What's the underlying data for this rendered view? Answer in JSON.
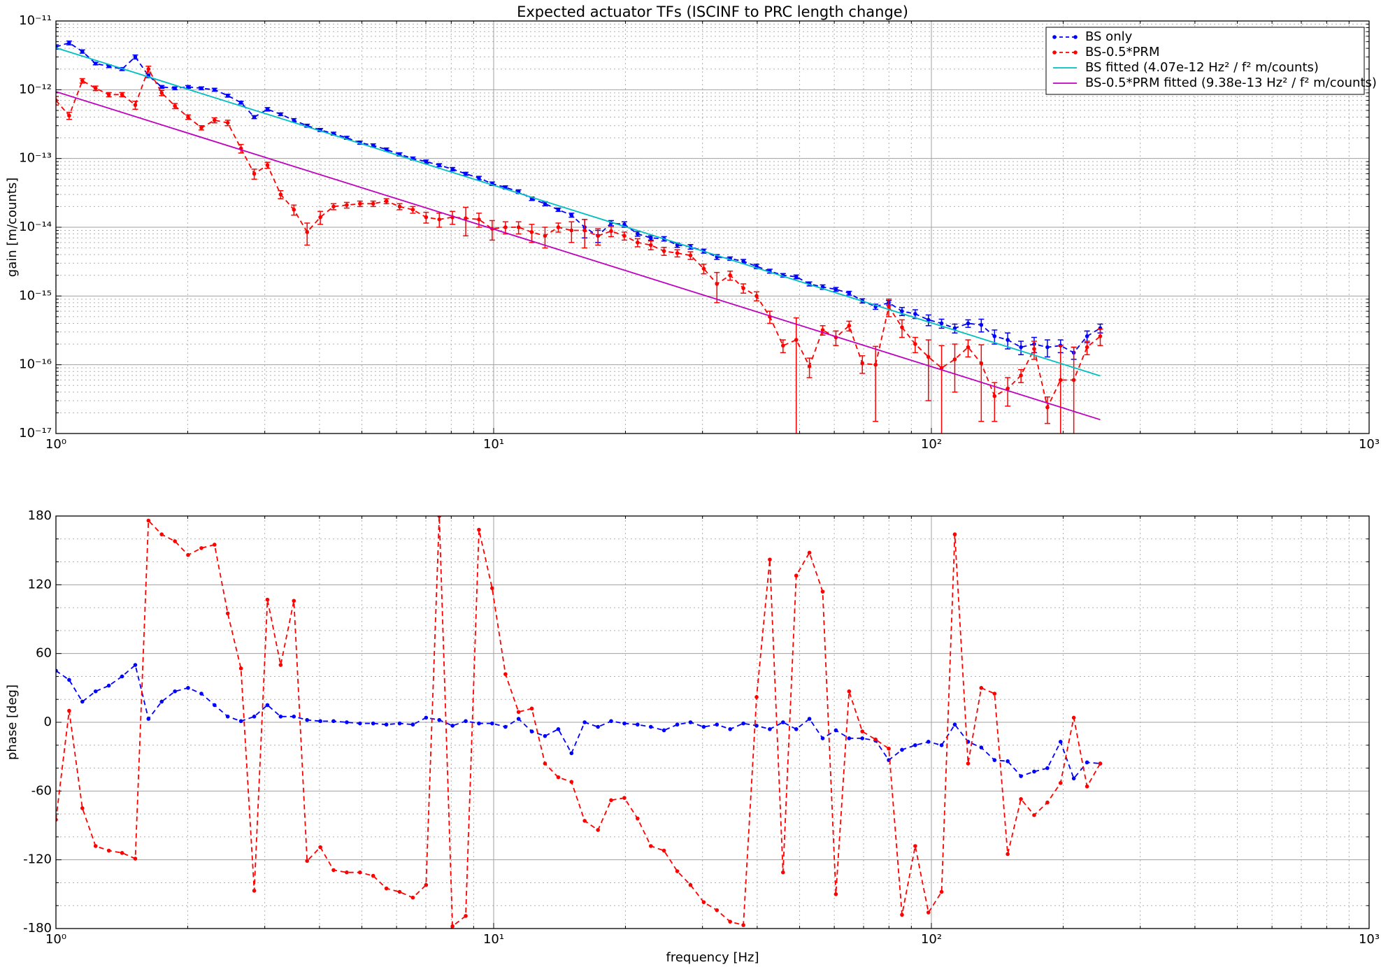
{
  "chart_data": [
    {
      "type": "line",
      "title": "Expected actuator TFs (ISCINF to PRC length change)",
      "ylabel": "gain [m/counts]",
      "xlog": true,
      "ylog": true,
      "grid": true,
      "legend": "upper right",
      "xlim": [
        1,
        1000
      ],
      "xticks": [
        {
          "value": 1,
          "label": "10⁰"
        },
        {
          "value": 10,
          "label": "10¹"
        },
        {
          "value": 100,
          "label": "10²"
        },
        {
          "value": 1000,
          "label": "10³"
        }
      ],
      "ylim": [
        1e-17,
        1e-11
      ],
      "yticks": [
        {
          "value": 1e-17,
          "label": "10⁻¹⁷"
        },
        {
          "value": 1e-16,
          "label": "10⁻¹⁶"
        },
        {
          "value": 1e-15,
          "label": "10⁻¹⁵"
        },
        {
          "value": 1e-14,
          "label": "10⁻¹⁴"
        },
        {
          "value": 1e-13,
          "label": "10⁻¹³"
        },
        {
          "value": 1e-12,
          "label": "10⁻¹²"
        },
        {
          "value": 1e-11,
          "label": "10⁻¹¹"
        }
      ],
      "x": [
        1.0,
        1.072,
        1.149,
        1.232,
        1.321,
        1.416,
        1.518,
        1.627,
        1.744,
        1.87,
        2.004,
        2.149,
        2.303,
        2.469,
        2.647,
        2.838,
        3.042,
        3.261,
        3.496,
        3.748,
        4.018,
        4.307,
        4.617,
        4.95,
        5.306,
        5.688,
        6.098,
        6.537,
        7.008,
        7.512,
        8.053,
        8.633,
        9.255,
        9.921,
        10.64,
        11.4,
        12.22,
        13.1,
        14.05,
        15.06,
        16.14,
        17.31,
        18.55,
        19.89,
        21.32,
        22.86,
        24.5,
        26.27,
        28.16,
        30.19,
        32.36,
        34.69,
        37.19,
        39.87,
        42.74,
        45.82,
        49.12,
        52.65,
        56.45,
        60.51,
        64.87,
        69.54,
        74.55,
        79.92,
        85.67,
        91.84,
        98.45,
        105.5,
        113.1,
        121.3,
        130.0,
        139.4,
        149.4,
        160.2,
        171.7,
        184.1,
        197.3,
        211.5,
        226.8,
        243.1
      ],
      "series": [
        {
          "name": "BS only",
          "color": "#0000ff",
          "linestyle": "dashed",
          "marker": true,
          "values": [
            4.2e-12,
            4.8e-12,
            3.6e-12,
            2.4e-12,
            2.2e-12,
            2e-12,
            3e-12,
            1.6e-12,
            1.1e-12,
            1.05e-12,
            1.1e-12,
            1.05e-12,
            1e-12,
            8.2e-13,
            6.5e-13,
            4e-13,
            5.2e-13,
            4.4e-13,
            3.6e-13,
            3e-13,
            2.6e-13,
            2.3e-13,
            2e-13,
            1.7e-13,
            1.55e-13,
            1.35e-13,
            1.15e-13,
            1e-13,
            9e-14,
            8e-14,
            7e-14,
            6e-14,
            5.2e-14,
            4.3e-14,
            3.8e-14,
            3.3e-14,
            2.6e-14,
            2.2e-14,
            1.8e-14,
            1.5e-14,
            1e-14,
            7.5e-15,
            1.15e-14,
            1.1e-14,
            8e-15,
            7e-15,
            6.8e-15,
            5.5e-15,
            5.2e-15,
            4.5e-15,
            3.7e-15,
            3.5e-15,
            3.2e-15,
            2.7e-15,
            2.3e-15,
            2e-15,
            1.9e-15,
            1.5e-15,
            1.35e-15,
            1.25e-15,
            1.1e-15,
            8.5e-16,
            7e-16,
            8e-16,
            6e-16,
            5.5e-16,
            4.5e-16,
            4e-16,
            3.4e-16,
            4e-16,
            3.8e-16,
            2.6e-16,
            2.3e-16,
            1.8e-16,
            2e-16,
            1.8e-16,
            1.9e-16,
            1.5e-16,
            2.6e-16,
            3.4e-16
          ],
          "errors": [
            3e-13,
            3e-13,
            2e-13,
            1e-13,
            1e-13,
            1e-13,
            2e-13,
            1e-13,
            5e-14,
            5e-14,
            5e-14,
            5e-14,
            5e-14,
            4e-14,
            3e-14,
            2e-14,
            3e-14,
            2e-14,
            2e-14,
            1.5e-14,
            1.3e-14,
            1.1e-14,
            1e-14,
            9e-15,
            8e-15,
            7e-15,
            6e-15,
            5e-15,
            5e-15,
            4e-15,
            4e-15,
            3e-15,
            3e-15,
            2.5e-15,
            2e-15,
            2e-15,
            1.5e-15,
            1.5e-15,
            1e-15,
            1e-15,
            3e-15,
            1.5e-15,
            1e-15,
            1e-15,
            6e-16,
            5e-16,
            5e-16,
            4e-16,
            4e-16,
            3e-16,
            3e-16,
            2e-16,
            2e-16,
            2e-16,
            1.5e-16,
            1.2e-16,
            1.2e-16,
            1e-16,
            1e-16,
            8e-17,
            7e-17,
            6e-17,
            6e-17,
            6e-17,
            8e-17,
            8e-17,
            8e-17,
            6e-17,
            5e-17,
            5e-17,
            8e-17,
            6e-17,
            6e-17,
            4e-17,
            5e-17,
            5e-17,
            4e-17,
            3e-17,
            5e-17,
            5e-17
          ]
        },
        {
          "name": "BS-0.5*PRM",
          "color": "#ff0000",
          "linestyle": "dashed",
          "marker": true,
          "values": [
            7e-13,
            4.2e-13,
            1.35e-12,
            1.05e-12,
            8.5e-13,
            8.5e-13,
            6e-13,
            2e-12,
            9e-13,
            5.8e-13,
            4e-13,
            2.8e-13,
            3.6e-13,
            3.3e-13,
            1.4e-13,
            6e-14,
            8e-14,
            3e-14,
            1.8e-14,
            8.5e-15,
            1.4e-14,
            2e-14,
            2.1e-14,
            2.2e-14,
            2.2e-14,
            2.4e-14,
            2e-14,
            1.8e-14,
            1.4e-14,
            1.3e-14,
            1.4e-14,
            1.35e-14,
            1.3e-14,
            9.5e-15,
            1e-14,
            1e-14,
            8.5e-15,
            7.5e-15,
            1e-14,
            9e-15,
            9e-15,
            7.5e-15,
            8.8e-15,
            7.5e-15,
            6e-15,
            5.5e-15,
            4.5e-15,
            4.2e-15,
            3.9e-15,
            2.5e-15,
            1.5e-15,
            2e-15,
            1.3e-15,
            1e-15,
            5e-16,
            1.9e-16,
            2.3e-16,
            9.5e-17,
            3.2e-16,
            2.5e-16,
            3.7e-16,
            1.05e-16,
            1e-16,
            7e-16,
            3.5e-16,
            2e-16,
            1.3e-16,
            9e-17,
            1.2e-16,
            1.8e-16,
            1.05e-16,
            3.5e-17,
            4.5e-17,
            7e-17,
            1.7e-16,
            2.4e-17,
            6e-17,
            6e-17,
            1.8e-16,
            2.6e-16
          ],
          "errors": [
            1e-13,
            5e-14,
            1e-13,
            8e-14,
            6e-14,
            6e-14,
            8e-14,
            2e-13,
            8e-14,
            5e-14,
            3e-14,
            2e-14,
            3e-14,
            3e-14,
            2e-14,
            1e-14,
            8e-15,
            4e-15,
            3e-15,
            3e-15,
            3e-15,
            2e-15,
            2e-15,
            2e-15,
            2e-15,
            2e-15,
            2e-15,
            2e-15,
            2.5e-15,
            3e-15,
            3e-15,
            6e-15,
            3e-15,
            3e-15,
            2e-15,
            2e-15,
            2.5e-15,
            2.5e-15,
            1.5e-15,
            3e-15,
            4e-15,
            2e-15,
            1.5e-15,
            1e-15,
            8e-16,
            8e-16,
            6e-16,
            5e-16,
            5e-16,
            4e-16,
            7e-16,
            3e-16,
            2e-16,
            1.5e-16,
            1e-16,
            4e-17,
            2.5e-16,
            3e-17,
            5e-17,
            6e-17,
            6e-17,
            3e-17,
            8.5e-17,
            2e-16,
            1e-16,
            5e-17,
            1e-16,
            1e-16,
            8e-17,
            5e-17,
            9e-17,
            2e-17,
            2e-17,
            1.5e-17,
            5e-17,
            1e-17,
            1.3e-16,
            1.2e-16,
            4e-17,
            7e-17
          ]
        },
        {
          "name": "BS fitted (4.07e-12 Hz² / f²  m/counts)",
          "color": "#00bfbf",
          "linestyle": "solid",
          "marker": false,
          "x": [
            1,
            243.1
          ],
          "values": [
            4.07e-12,
            6.89e-17
          ]
        },
        {
          "name": "BS-0.5*PRM fitted (9.38e-13 Hz² / f²  m/counts)",
          "color": "#bf00bf",
          "linestyle": "solid",
          "marker": false,
          "x": [
            1,
            243.1
          ],
          "values": [
            9.38e-13,
            1.59e-17
          ]
        }
      ]
    },
    {
      "type": "line",
      "xlabel": "frequency [Hz]",
      "ylabel": "phase [deg]",
      "xlog": true,
      "ylog": false,
      "grid": true,
      "xlim": [
        1,
        1000
      ],
      "xticks": [
        {
          "value": 1,
          "label": "10⁰"
        },
        {
          "value": 10,
          "label": "10¹"
        },
        {
          "value": 100,
          "label": "10²"
        },
        {
          "value": 1000,
          "label": "10³"
        }
      ],
      "ylim": [
        -180,
        180
      ],
      "yticks": [
        -180,
        -120,
        -60,
        0,
        60,
        120,
        180
      ],
      "x": [
        1.0,
        1.072,
        1.149,
        1.232,
        1.321,
        1.416,
        1.518,
        1.627,
        1.744,
        1.87,
        2.004,
        2.149,
        2.303,
        2.469,
        2.647,
        2.838,
        3.042,
        3.261,
        3.496,
        3.748,
        4.018,
        4.307,
        4.617,
        4.95,
        5.306,
        5.688,
        6.098,
        6.537,
        7.008,
        7.512,
        8.053,
        8.633,
        9.255,
        9.921,
        10.64,
        11.4,
        12.22,
        13.1,
        14.05,
        15.06,
        16.14,
        17.31,
        18.55,
        19.89,
        21.32,
        22.86,
        24.5,
        26.27,
        28.16,
        30.19,
        32.36,
        34.69,
        37.19,
        39.87,
        42.74,
        45.82,
        49.12,
        52.65,
        56.45,
        60.51,
        64.87,
        69.54,
        74.55,
        79.92,
        85.67,
        91.84,
        98.45,
        105.5,
        113.1,
        121.3,
        130.0,
        139.4,
        149.4,
        160.2,
        171.7,
        184.1,
        197.3,
        211.5,
        226.8,
        243.1
      ],
      "series": [
        {
          "name": "BS only",
          "color": "#0000ff",
          "linestyle": "dashed",
          "marker": true,
          "values": [
            45,
            37,
            18,
            27,
            32,
            40,
            50,
            3,
            18,
            27,
            30,
            25,
            15,
            5,
            1,
            5,
            15,
            5,
            5,
            2,
            1,
            1,
            0,
            -1,
            -1,
            -2,
            -1,
            -2,
            4,
            2,
            -3,
            1,
            -1,
            -1,
            -4,
            3,
            -8,
            -12,
            -6,
            -27,
            0,
            -4,
            1,
            -1,
            -2,
            -4,
            -7,
            -2,
            0,
            -4,
            -2,
            -6,
            -1,
            -3,
            -6,
            0,
            -6,
            3,
            -14,
            -7,
            -14,
            -14,
            -16,
            -33,
            -24,
            -20,
            -17,
            -20,
            -2,
            -17,
            -22,
            -33,
            -34,
            -47,
            -43,
            -40,
            -17,
            -49,
            -35,
            -36
          ]
        },
        {
          "name": "BS-0.5*PRM",
          "color": "#ff0000",
          "linestyle": "dashed",
          "marker": true,
          "values": [
            -85,
            10,
            -75,
            -108,
            -112,
            -114,
            -119,
            176,
            164,
            158,
            146,
            152,
            155,
            95,
            47,
            -147,
            107,
            50,
            106,
            -121,
            -109,
            -129,
            -131,
            -131,
            -134,
            -145,
            -148,
            -153,
            -142,
            180,
            -178,
            -169,
            168,
            117,
            42,
            9,
            12,
            -36,
            -48,
            -52,
            -86,
            -94,
            -68,
            -66,
            -84,
            -108,
            -112,
            -130,
            -142,
            -157,
            -164,
            -174,
            -177,
            22,
            142,
            -131,
            128,
            148,
            114,
            -150,
            27,
            -8,
            -15,
            -23,
            -168,
            -108,
            -166,
            -148,
            164,
            -36,
            30,
            25,
            -115,
            -67,
            -81,
            -70,
            -53,
            4,
            -56,
            -36
          ]
        }
      ]
    }
  ]
}
